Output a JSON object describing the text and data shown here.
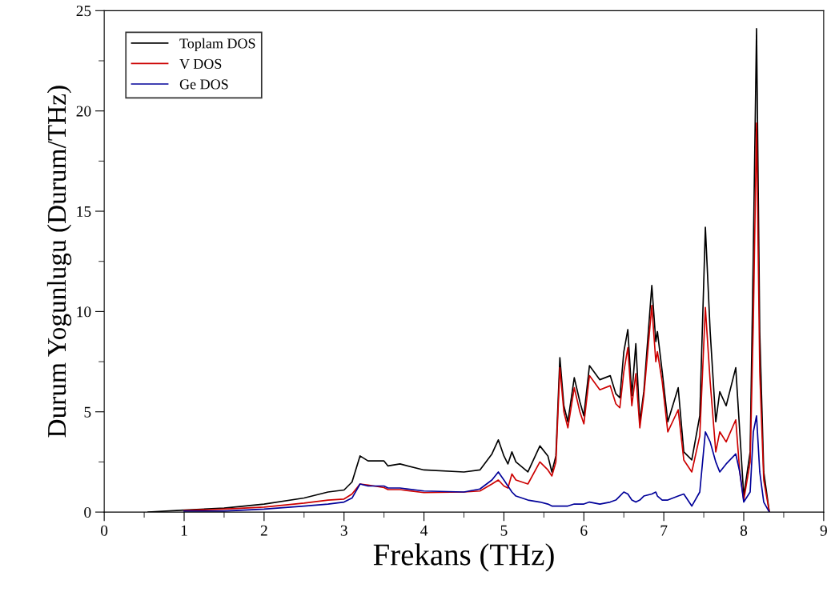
{
  "chart_data": {
    "type": "line",
    "xlabel": "Frekans (THz)",
    "ylabel": "Durum Yogunlugu (Durum/THz)",
    "x": [
      0.55,
      1.0,
      1.5,
      2.0,
      2.5,
      2.8,
      3.0,
      3.1,
      3.2,
      3.3,
      3.5,
      3.55,
      3.7,
      4.0,
      4.5,
      4.7,
      4.85,
      4.93,
      5.0,
      5.05,
      5.1,
      5.15,
      5.3,
      5.45,
      5.55,
      5.6,
      5.65,
      5.7,
      5.75,
      5.8,
      5.88,
      5.95,
      6.0,
      6.07,
      6.2,
      6.33,
      6.4,
      6.45,
      6.5,
      6.55,
      6.6,
      6.65,
      6.7,
      6.75,
      6.85,
      6.9,
      6.92,
      6.98,
      7.05,
      7.18,
      7.25,
      7.35,
      7.45,
      7.52,
      7.58,
      7.65,
      7.7,
      7.78,
      7.9,
      7.95,
      8.0,
      8.08,
      8.12,
      8.16,
      8.2,
      8.25,
      8.32
    ],
    "series": [
      {
        "name": "Toplam DOS",
        "color": "#000000",
        "values": [
          0,
          0.1,
          0.2,
          0.4,
          0.7,
          1.0,
          1.1,
          1.5,
          2.8,
          2.55,
          2.55,
          2.3,
          2.4,
          2.1,
          2.0,
          2.1,
          2.9,
          3.6,
          2.8,
          2.4,
          3.0,
          2.5,
          2.0,
          3.3,
          2.8,
          2.0,
          2.8,
          7.7,
          5.3,
          4.5,
          6.7,
          5.5,
          4.8,
          7.3,
          6.6,
          6.8,
          5.9,
          5.7,
          8.0,
          9.1,
          5.8,
          8.4,
          4.5,
          6.0,
          11.3,
          8.5,
          9.0,
          7.0,
          4.5,
          6.2,
          3.0,
          2.6,
          4.8,
          14.2,
          9.0,
          4.5,
          6.0,
          5.3,
          7.2,
          4.0,
          0.8,
          3.0,
          13.0,
          24.1,
          9.0,
          2.0,
          0
        ]
      },
      {
        "name": "V DOS",
        "color": "#cc0000",
        "values": [
          null,
          0.08,
          0.15,
          0.25,
          0.45,
          0.6,
          0.65,
          0.9,
          1.4,
          1.35,
          1.22,
          1.12,
          1.12,
          0.97,
          1.0,
          1.05,
          1.4,
          1.6,
          1.3,
          1.2,
          1.9,
          1.6,
          1.4,
          2.5,
          2.1,
          1.8,
          2.5,
          7.2,
          5.0,
          4.2,
          6.2,
          5.0,
          4.4,
          6.8,
          6.1,
          6.3,
          5.4,
          5.2,
          7.0,
          8.2,
          5.3,
          6.9,
          4.2,
          5.8,
          10.3,
          7.5,
          8.0,
          6.5,
          4.0,
          5.1,
          2.6,
          2.0,
          3.8,
          10.2,
          6.5,
          3.0,
          4.0,
          3.5,
          4.6,
          2.0,
          0.6,
          2.5,
          9.5,
          19.4,
          7.0,
          1.6,
          0
        ]
      },
      {
        "name": "Ge DOS",
        "color": "#000099",
        "values": [
          null,
          0.05,
          0.05,
          0.15,
          0.3,
          0.4,
          0.5,
          0.7,
          1.4,
          1.3,
          1.3,
          1.2,
          1.2,
          1.05,
          1.0,
          1.15,
          1.6,
          2.0,
          1.6,
          1.3,
          1.0,
          0.8,
          0.6,
          0.5,
          0.4,
          0.3,
          0.3,
          0.3,
          0.3,
          0.3,
          0.4,
          0.4,
          0.4,
          0.5,
          0.4,
          0.5,
          0.6,
          0.8,
          1.0,
          0.9,
          0.6,
          0.5,
          0.6,
          0.8,
          0.9,
          1.0,
          0.8,
          0.6,
          0.6,
          0.8,
          0.9,
          0.3,
          1.0,
          4.0,
          3.5,
          2.5,
          2.0,
          2.4,
          2.9,
          2.0,
          0.5,
          1.0,
          4.0,
          4.8,
          2.0,
          0.5,
          0
        ]
      }
    ],
    "xlim": [
      0,
      9
    ],
    "xticks": [
      0,
      1,
      2,
      3,
      4,
      5,
      6,
      7,
      8,
      9
    ],
    "ylim": [
      0,
      25
    ],
    "yticks": [
      0,
      5,
      10,
      15,
      20,
      25
    ],
    "legend": "top left",
    "grid": false
  }
}
